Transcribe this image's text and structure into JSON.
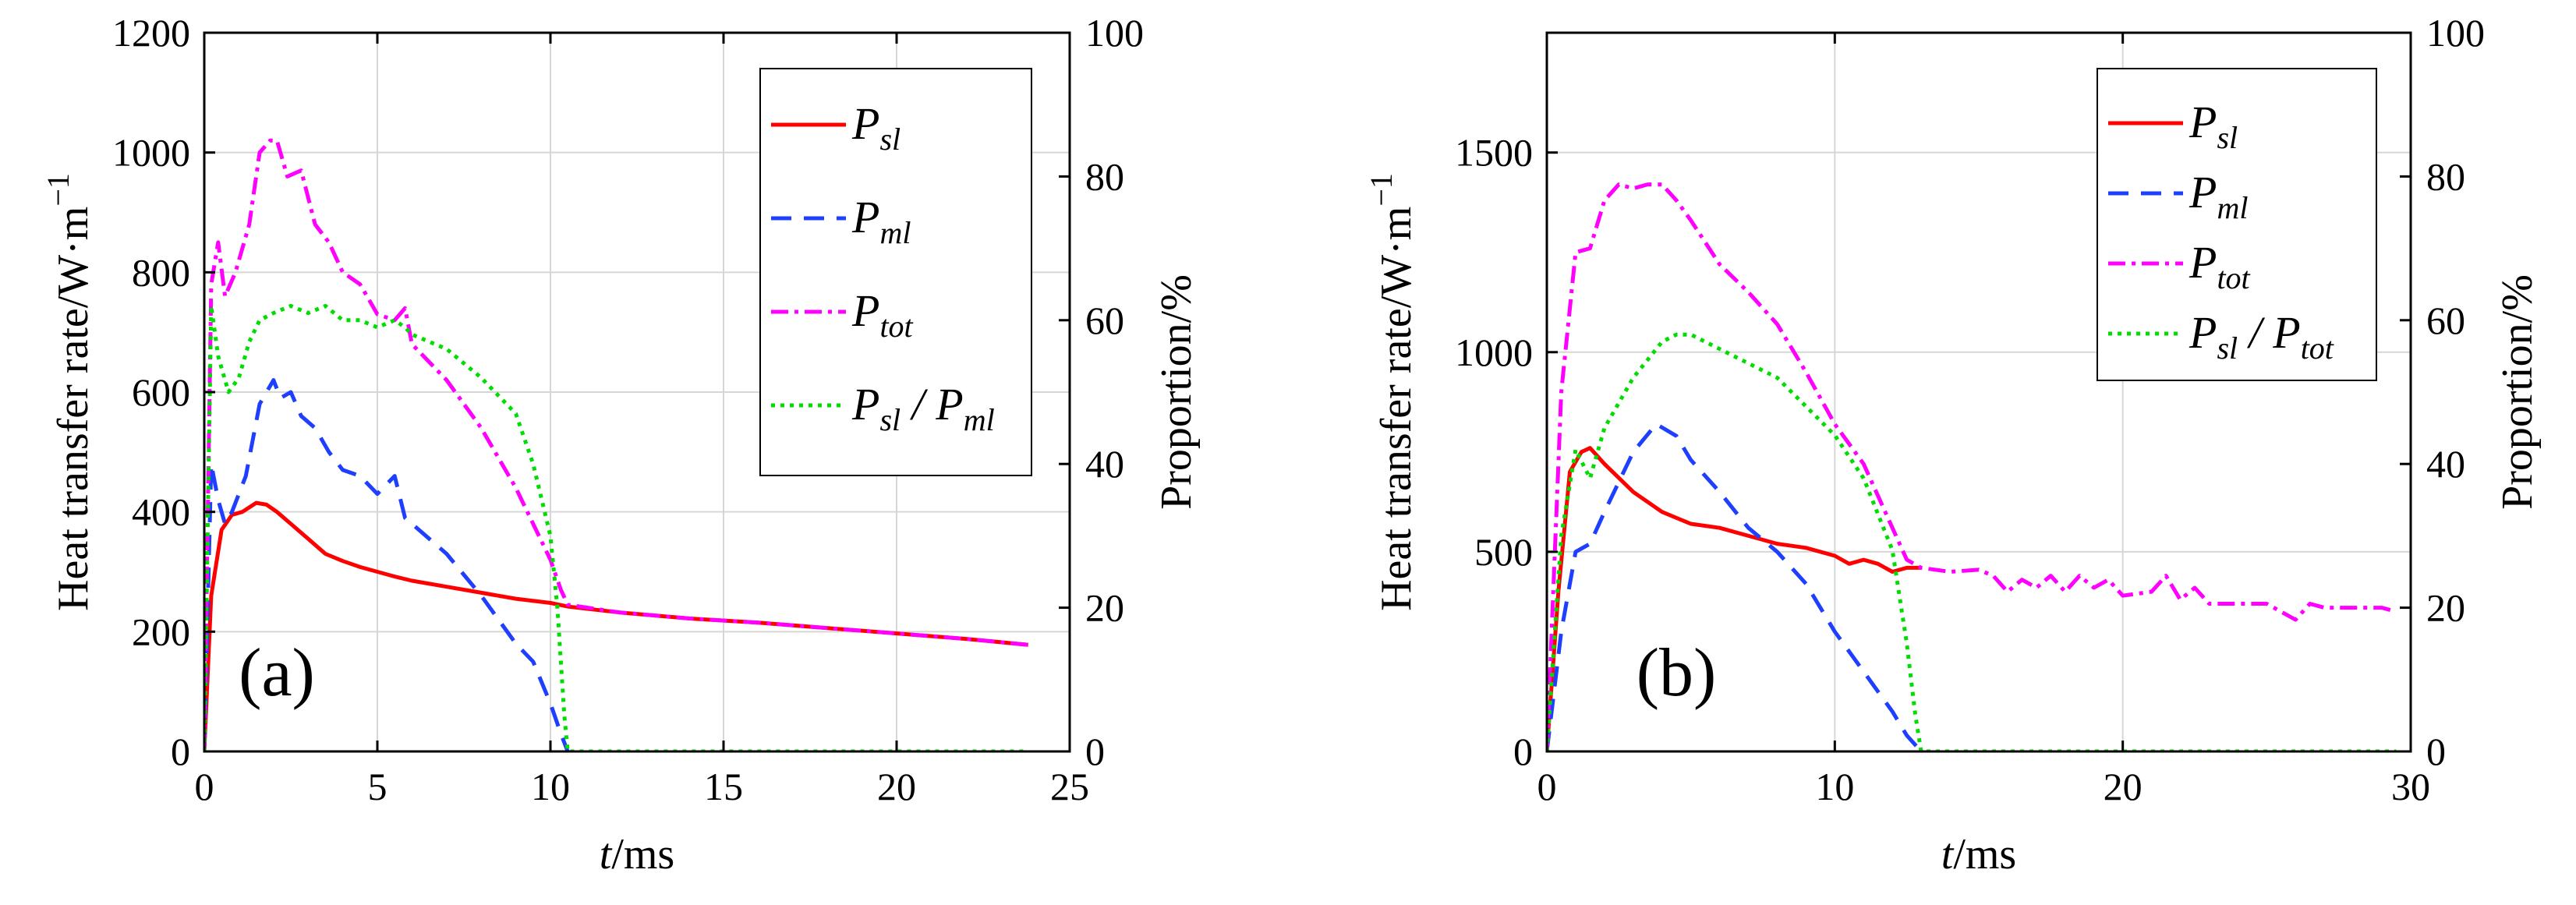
{
  "chart_data": [
    {
      "type": "line",
      "panel_label": "(a)",
      "xlabel_italic": "t",
      "xlabel_unit": "/ms",
      "ylabel": "Heat transfer rate/W·m",
      "ylabel_sup": "−1",
      "y2label": "Proportion/%",
      "xlim": [
        0,
        25
      ],
      "ylim": [
        0,
        1200
      ],
      "y2lim": [
        0,
        100
      ],
      "xticks": [
        0,
        5,
        10,
        15,
        20,
        25
      ],
      "yticks": [
        0,
        200,
        400,
        600,
        800,
        1000,
        1200
      ],
      "y2ticks": [
        0,
        20,
        40,
        60,
        80,
        100
      ],
      "grid": true,
      "legend_position": "top-right",
      "series": [
        {
          "name": "P_sl",
          "legend_main": "P",
          "legend_sub": "sl",
          "legend_sub2": "",
          "legend_sep": "",
          "color": "#ff0000",
          "dash": "",
          "axis": "left",
          "x": [
            0,
            0.2,
            0.5,
            0.8,
            1.1,
            1.5,
            1.8,
            2.1,
            2.5,
            3,
            3.5,
            4,
            4.5,
            5,
            5.5,
            6,
            7,
            8,
            9,
            10,
            10.5,
            12,
            14,
            16,
            18,
            20,
            22,
            23.8
          ],
          "y": [
            0,
            260,
            370,
            395,
            400,
            415,
            412,
            400,
            380,
            355,
            330,
            318,
            308,
            300,
            292,
            285,
            275,
            265,
            255,
            248,
            242,
            232,
            222,
            215,
            206,
            197,
            188,
            178
          ]
        },
        {
          "name": "P_ml",
          "legend_main": "P",
          "legend_sub": "ml",
          "legend_sub2": "",
          "legend_sep": "",
          "color": "#1f3fff",
          "dash": "26,16",
          "axis": "left",
          "x": [
            0,
            0.2,
            0.4,
            0.6,
            0.8,
            1.2,
            1.6,
            2.0,
            2.2,
            2.5,
            2.8,
            3.2,
            3.6,
            4.0,
            4.5,
            5.0,
            5.5,
            5.8,
            6.0,
            7.0,
            8.0,
            9.0,
            9.5,
            10.0,
            10.3,
            10.5
          ],
          "y": [
            0,
            480,
            420,
            380,
            400,
            460,
            580,
            620,
            590,
            600,
            560,
            540,
            500,
            470,
            460,
            430,
            460,
            390,
            380,
            330,
            260,
            180,
            150,
            80,
            30,
            0
          ]
        },
        {
          "name": "P_tot",
          "legend_main": "P",
          "legend_sub": "tot",
          "legend_sub2": "",
          "legend_sep": "",
          "color": "#ff00ff",
          "dash": "22,8,5,8",
          "axis": "left",
          "x": [
            0,
            0.2,
            0.4,
            0.6,
            0.9,
            1.3,
            1.6,
            1.9,
            2.1,
            2.4,
            2.8,
            3.2,
            3.6,
            4.0,
            4.5,
            5.0,
            5.5,
            5.8,
            6.0,
            7.0,
            8.0,
            9.0,
            9.5,
            10.0,
            10.3,
            10.5,
            12,
            14,
            16,
            18,
            20,
            22,
            23.8
          ],
          "y": [
            0,
            780,
            850,
            760,
            800,
            880,
            1000,
            1020,
            1020,
            960,
            970,
            880,
            850,
            800,
            780,
            730,
            720,
            740,
            680,
            620,
            540,
            440,
            380,
            320,
            270,
            245,
            232,
            222,
            215,
            206,
            197,
            188,
            178
          ]
        },
        {
          "name": "P_sl/P_ml",
          "legend_main": "P",
          "legend_sub": "sl",
          "legend_sub2": "ml",
          "legend_sep": " / ",
          "color": "#00dd00",
          "dash": "5,7",
          "axis": "right",
          "x": [
            0,
            0.2,
            0.4,
            0.7,
            1.0,
            1.3,
            1.6,
            2.0,
            2.5,
            3.0,
            3.5,
            4.0,
            4.5,
            5.0,
            5.5,
            5.8,
            6.0,
            7.0,
            8.0,
            9.0,
            9.5,
            10.0,
            10.2,
            10.4,
            10.5,
            12,
            14,
            16,
            18,
            20,
            22,
            23.8
          ],
          "y": [
            0,
            62,
            55,
            50,
            52,
            57,
            60,
            61,
            62,
            61,
            62,
            60,
            60,
            59,
            60,
            59,
            58,
            56,
            52,
            47,
            40,
            30,
            20,
            5,
            0,
            0,
            0,
            0,
            0,
            0,
            0,
            0
          ]
        }
      ]
    },
    {
      "type": "line",
      "panel_label": "(b)",
      "xlabel_italic": "t",
      "xlabel_unit": "/ms",
      "ylabel": "Heat transfer rate/W·m",
      "ylabel_sup": "−1",
      "y2label": "Proportion/%",
      "xlim": [
        0,
        30
      ],
      "ylim": [
        0,
        1800
      ],
      "y2lim": [
        0,
        100
      ],
      "xticks": [
        0,
        10,
        20,
        30
      ],
      "yticks": [
        0,
        500,
        1000,
        1500
      ],
      "y2ticks": [
        0,
        20,
        40,
        60,
        80,
        100
      ],
      "grid": true,
      "legend_position": "top-right",
      "series": [
        {
          "name": "P_sl",
          "legend_main": "P",
          "legend_sub": "sl",
          "legend_sub2": "",
          "legend_sep": "",
          "color": "#ff0000",
          "dash": "",
          "axis": "left",
          "x": [
            0,
            0.4,
            0.8,
            1.2,
            1.5,
            2.0,
            3.0,
            4.0,
            5.0,
            6.0,
            7.0,
            8.0,
            9.0,
            10.0,
            10.5,
            11.0,
            11.5,
            12.0,
            12.5,
            13.0
          ],
          "y": [
            0,
            400,
            700,
            750,
            760,
            720,
            650,
            600,
            570,
            560,
            540,
            520,
            510,
            490,
            470,
            480,
            470,
            450,
            460,
            460
          ]
        },
        {
          "name": "P_ml",
          "legend_main": "P",
          "legend_sub": "ml",
          "legend_sub2": "",
          "legend_sep": "",
          "color": "#1f3fff",
          "dash": "26,16",
          "axis": "left",
          "x": [
            0,
            0.5,
            1.0,
            1.5,
            2.0,
            3.0,
            3.8,
            4.5,
            5.0,
            6.0,
            7.0,
            8.0,
            9.0,
            10.0,
            11.0,
            12.0,
            12.5,
            13.0
          ],
          "y": [
            0,
            300,
            500,
            520,
            600,
            750,
            820,
            790,
            730,
            650,
            560,
            500,
            420,
            300,
            200,
            100,
            40,
            0
          ]
        },
        {
          "name": "P_tot",
          "legend_main": "P",
          "legend_sub": "tot",
          "legend_sub2": "",
          "legend_sep": "",
          "color": "#ff00ff",
          "dash": "22,8,5,8",
          "axis": "left",
          "x": [
            0,
            0.5,
            1.0,
            1.5,
            2.0,
            2.5,
            3.0,
            3.5,
            4.0,
            4.5,
            5.0,
            6.0,
            7.0,
            8.0,
            9.0,
            10.0,
            11.0,
            12.0,
            12.5,
            13.0,
            14,
            15,
            15.5,
            16,
            16.5,
            17,
            17.5,
            18,
            18.5,
            19,
            19.5,
            20,
            21,
            21.5,
            22,
            22.5,
            23,
            24,
            25,
            26,
            26.5,
            27,
            28,
            29,
            29.5
          ],
          "y": [
            0,
            900,
            1250,
            1260,
            1380,
            1420,
            1410,
            1420,
            1420,
            1380,
            1330,
            1220,
            1150,
            1070,
            950,
            820,
            720,
            560,
            480,
            460,
            450,
            455,
            440,
            400,
            430,
            410,
            440,
            400,
            440,
            410,
            430,
            390,
            400,
            440,
            380,
            410,
            370,
            370,
            370,
            330,
            370,
            360,
            360,
            360,
            350
          ]
        },
        {
          "name": "P_sl/P_tot",
          "legend_main": "P",
          "legend_sub": "sl",
          "legend_sub2": "tot",
          "legend_sep": " / ",
          "color": "#00dd00",
          "dash": "5,7",
          "axis": "right",
          "x": [
            0,
            0.5,
            1.0,
            1.5,
            2.0,
            3.0,
            4.0,
            4.5,
            5.0,
            6.0,
            7.0,
            8.0,
            9.0,
            10.0,
            11.0,
            12.0,
            12.5,
            12.8,
            13.0,
            15,
            20,
            25,
            29.5
          ],
          "y": [
            0,
            30,
            42,
            38,
            45,
            52,
            57,
            58,
            58,
            56,
            54,
            52,
            48,
            44,
            38,
            28,
            15,
            5,
            0,
            0,
            0,
            0,
            0
          ]
        }
      ]
    }
  ]
}
